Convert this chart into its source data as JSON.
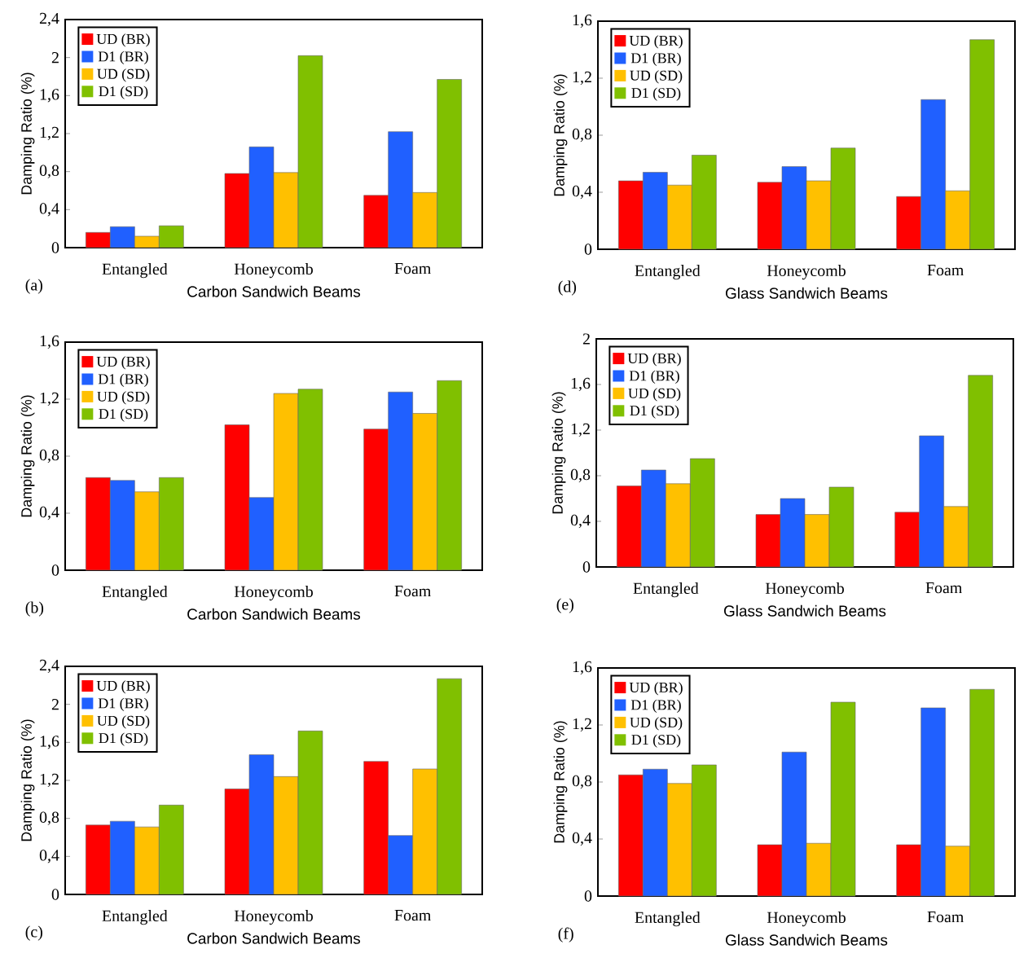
{
  "chart_data": [
    {
      "type": "bar",
      "categories": [
        "Entangled",
        "Honeycomb",
        "Foam"
      ],
      "xlabel": "Carbon Sandwich Beams",
      "ylabel": "Damping Ratio (%)",
      "ylim": [
        0,
        2.4
      ],
      "yticks": [
        0,
        {
          "value": 0.4,
          "label": "0,4"
        },
        {
          "value": 0.8,
          "label": "0,8"
        },
        {
          "value": 1.2,
          "label": "1,2"
        },
        {
          "value": 1.6,
          "label": "1,6"
        },
        2,
        {
          "value": 2.4,
          "label": "2,4"
        }
      ],
      "legend": "top left",
      "annotations": [
        "(a)"
      ],
      "series": [
        {
          "name": "UD (BR)",
          "color": "#ff0000",
          "values": [
            0.16,
            0.78,
            0.55
          ]
        },
        {
          "name": "D1 (BR)",
          "color": "#2060ff",
          "values": [
            0.22,
            1.06,
            1.22
          ]
        },
        {
          "name": "UD (SD)",
          "color": "#ffc000",
          "values": [
            0.12,
            0.79,
            0.58
          ]
        },
        {
          "name": "D1 (SD)",
          "color": "#80c000",
          "values": [
            0.23,
            2.02,
            1.77
          ]
        }
      ]
    },
    {
      "type": "bar",
      "categories": [
        "Entangled",
        "Honeycomb",
        "Foam"
      ],
      "xlabel": "Glass Sandwich Beams",
      "ylabel": "Damping Ratio (%)",
      "ylim": [
        0,
        1.6
      ],
      "yticks": [
        0,
        {
          "value": 0.4,
          "label": "0,4"
        },
        {
          "value": 0.8,
          "label": "0,8"
        },
        {
          "value": 1.2,
          "label": "1,2"
        },
        {
          "value": 1.6,
          "label": "1,6"
        }
      ],
      "legend": "top left",
      "annotations": [
        "(d)"
      ],
      "series": [
        {
          "name": "UD (BR)",
          "color": "#ff0000",
          "values": [
            0.48,
            0.47,
            0.37
          ]
        },
        {
          "name": "D1 (BR)",
          "color": "#2060ff",
          "values": [
            0.54,
            0.58,
            1.05
          ]
        },
        {
          "name": "UD (SD)",
          "color": "#ffc000",
          "values": [
            0.45,
            0.48,
            0.41
          ]
        },
        {
          "name": "D1 (SD)",
          "color": "#80c000",
          "values": [
            0.66,
            0.71,
            1.47
          ]
        }
      ]
    },
    {
      "type": "bar",
      "categories": [
        "Entangled",
        "Honeycomb",
        "Foam"
      ],
      "xlabel": "Carbon Sandwich Beams",
      "ylabel": "Damping Ratio (%)",
      "ylim": [
        0,
        1.6
      ],
      "yticks": [
        0,
        {
          "value": 0.4,
          "label": "0,4"
        },
        {
          "value": 0.8,
          "label": "0,8"
        },
        {
          "value": 1.2,
          "label": "1,2"
        },
        {
          "value": 1.6,
          "label": "1,6"
        }
      ],
      "legend": "top left",
      "annotations": [
        "(b)"
      ],
      "series": [
        {
          "name": "UD (BR)",
          "color": "#ff0000",
          "values": [
            0.65,
            1.02,
            0.99
          ]
        },
        {
          "name": "D1 (BR)",
          "color": "#2060ff",
          "values": [
            0.63,
            0.51,
            1.25
          ]
        },
        {
          "name": "UD (SD)",
          "color": "#ffc000",
          "values": [
            0.55,
            1.24,
            1.1
          ]
        },
        {
          "name": "D1 (SD)",
          "color": "#80c000",
          "values": [
            0.65,
            1.27,
            1.33
          ]
        }
      ]
    },
    {
      "type": "bar",
      "categories": [
        "Entangled",
        "Honeycomb",
        "Foam"
      ],
      "xlabel": "Glass Sandwich Beams",
      "ylabel": "Damping Ratio (%)",
      "ylim": [
        0,
        2
      ],
      "yticks": [
        0,
        {
          "value": 0.4,
          "label": "0,4"
        },
        {
          "value": 0.8,
          "label": "0,8"
        },
        {
          "value": 1.2,
          "label": "1,2"
        },
        {
          "value": 1.6,
          "label": "1,6"
        },
        2
      ],
      "legend": "top left",
      "annotations": [
        "(e)"
      ],
      "series": [
        {
          "name": "UD (BR)",
          "color": "#ff0000",
          "values": [
            0.71,
            0.46,
            0.48
          ]
        },
        {
          "name": "D1 (BR)",
          "color": "#2060ff",
          "values": [
            0.85,
            0.6,
            1.15
          ]
        },
        {
          "name": "UD (SD)",
          "color": "#ffc000",
          "values": [
            0.73,
            0.46,
            0.53
          ]
        },
        {
          "name": "D1 (SD)",
          "color": "#80c000",
          "values": [
            0.95,
            0.7,
            1.68
          ]
        }
      ]
    },
    {
      "type": "bar",
      "categories": [
        "Entangled",
        "Honeycomb",
        "Foam"
      ],
      "xlabel": "Carbon Sandwich Beams",
      "ylabel": "Damping Ratio (%)",
      "ylim": [
        0,
        2.4
      ],
      "yticks": [
        0,
        {
          "value": 0.4,
          "label": "0,4"
        },
        {
          "value": 0.8,
          "label": "0,8"
        },
        {
          "value": 1.2,
          "label": "1,2"
        },
        {
          "value": 1.6,
          "label": "1,6"
        },
        2,
        {
          "value": 2.4,
          "label": "2,4"
        }
      ],
      "legend": "top left",
      "annotations": [
        "(c)"
      ],
      "series": [
        {
          "name": "UD (BR)",
          "color": "#ff0000",
          "values": [
            0.73,
            1.11,
            1.4
          ]
        },
        {
          "name": "D1 (BR)",
          "color": "#2060ff",
          "values": [
            0.77,
            1.47,
            0.62
          ]
        },
        {
          "name": "UD (SD)",
          "color": "#ffc000",
          "values": [
            0.71,
            1.24,
            1.32
          ]
        },
        {
          "name": "D1 (SD)",
          "color": "#80c000",
          "values": [
            0.94,
            1.72,
            2.27
          ]
        }
      ]
    },
    {
      "type": "bar",
      "categories": [
        "Entangled",
        "Honeycomb",
        "Foam"
      ],
      "xlabel": "Glass Sandwich Beams",
      "ylabel": "Damping Ratio (%)",
      "ylim": [
        0,
        1.6
      ],
      "yticks": [
        0,
        {
          "value": 0.4,
          "label": "0,4"
        },
        {
          "value": 0.8,
          "label": "0,8"
        },
        {
          "value": 1.2,
          "label": "1,2"
        },
        {
          "value": 1.6,
          "label": "1,6"
        }
      ],
      "legend": "top left",
      "annotations": [
        "(f)"
      ],
      "series": [
        {
          "name": "UD (BR)",
          "color": "#ff0000",
          "values": [
            0.85,
            0.36,
            0.36
          ]
        },
        {
          "name": "D1 (BR)",
          "color": "#2060ff",
          "values": [
            0.89,
            1.01,
            1.32
          ]
        },
        {
          "name": "UD (SD)",
          "color": "#ffc000",
          "values": [
            0.79,
            0.37,
            0.35
          ]
        },
        {
          "name": "D1 (SD)",
          "color": "#80c000",
          "values": [
            0.92,
            1.36,
            1.45
          ]
        }
      ]
    }
  ]
}
